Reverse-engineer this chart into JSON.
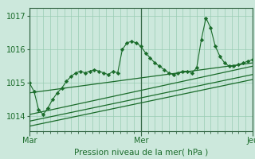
{
  "title": "Pression niveau de la mer( hPa )",
  "background_color": "#cce8dc",
  "grid_color": "#99ccb3",
  "line_color": "#1a6b2a",
  "vline_color": "#336644",
  "ylim": [
    1013.55,
    1017.25
  ],
  "yticks": [
    1014,
    1015,
    1016,
    1017
  ],
  "day_labels": [
    "Mar",
    "Mer",
    "Jeu"
  ],
  "day_positions": [
    0,
    48,
    96
  ],
  "total_hours": 96,
  "lines": [
    {
      "x": [
        0,
        2,
        4,
        6,
        8,
        10,
        12,
        14,
        16,
        18,
        20,
        22,
        24,
        26,
        28,
        30,
        32,
        34,
        36,
        38,
        40,
        42,
        44,
        46,
        48,
        50,
        52,
        54,
        56,
        58,
        60,
        62,
        64,
        66,
        68,
        70,
        72,
        74,
        76,
        78,
        80,
        82,
        84,
        86,
        88,
        90,
        92,
        94,
        96
      ],
      "y": [
        1015.0,
        1014.75,
        1014.2,
        1014.05,
        1014.25,
        1014.5,
        1014.7,
        1014.85,
        1015.05,
        1015.2,
        1015.3,
        1015.35,
        1015.3,
        1015.35,
        1015.4,
        1015.35,
        1015.3,
        1015.25,
        1015.35,
        1015.3,
        1016.0,
        1016.2,
        1016.25,
        1016.2,
        1016.1,
        1015.9,
        1015.75,
        1015.6,
        1015.5,
        1015.4,
        1015.3,
        1015.25,
        1015.3,
        1015.35,
        1015.35,
        1015.3,
        1015.45,
        1016.3,
        1016.95,
        1016.65,
        1016.1,
        1015.8,
        1015.6,
        1015.5,
        1015.5,
        1015.55,
        1015.6,
        1015.65,
        1015.7
      ],
      "marker": true
    },
    {
      "x": [
        0,
        96
      ],
      "y": [
        1014.7,
        1015.6
      ],
      "marker": false
    },
    {
      "x": [
        0,
        96
      ],
      "y": [
        1013.85,
        1015.25
      ],
      "marker": false
    },
    {
      "x": [
        0,
        96
      ],
      "y": [
        1013.7,
        1015.1
      ],
      "marker": false
    },
    {
      "x": [
        0,
        96
      ],
      "y": [
        1014.05,
        1015.5
      ],
      "marker": false
    }
  ]
}
